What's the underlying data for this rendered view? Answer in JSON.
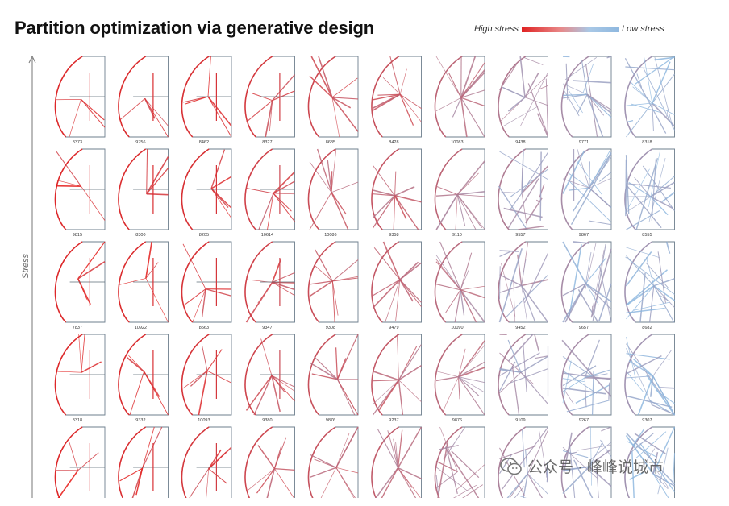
{
  "title": "Partition optimization via generative design",
  "legend": {
    "high_label": "High stress",
    "low_label": "Low stress",
    "high_color": "#e02222",
    "low_color": "#8fb8df"
  },
  "axis": {
    "label": "Stress"
  },
  "watermark": {
    "text": "公众号 · 峰峰说城市",
    "icon": "wechat-icon"
  },
  "grid": {
    "rows": 5,
    "cols": 10,
    "labels": [
      [
        "8373",
        "9756",
        "8462",
        "8327",
        "8685",
        "8428",
        "10083",
        "9438",
        "9771",
        "8318"
      ],
      [
        "9815",
        "8300",
        "8205",
        "10614",
        "10086",
        "9358",
        "9110",
        "9557",
        "9867",
        "8555"
      ],
      [
        "7837",
        "10922",
        "8563",
        "9347",
        "9308",
        "9479",
        "10090",
        "9452",
        "9657",
        "8682"
      ],
      [
        "8318",
        "9332",
        "10093",
        "9380",
        "9876",
        "9237",
        "9876",
        "9109",
        "9267",
        "9307"
      ],
      [
        "",
        "",
        "",
        "",
        "",
        "",
        "",
        "",
        "",
        ""
      ]
    ],
    "stress": [
      [
        0.05,
        0.08,
        0.12,
        0.18,
        0.3,
        0.38,
        0.55,
        0.72,
        0.88,
        0.96
      ],
      [
        0.05,
        0.08,
        0.12,
        0.25,
        0.35,
        0.42,
        0.55,
        0.75,
        0.88,
        0.95
      ],
      [
        0.05,
        0.08,
        0.14,
        0.25,
        0.35,
        0.45,
        0.6,
        0.75,
        0.88,
        0.95
      ],
      [
        0.05,
        0.1,
        0.15,
        0.28,
        0.38,
        0.45,
        0.58,
        0.78,
        0.88,
        0.95
      ],
      [
        0.05,
        0.1,
        0.18,
        0.3,
        0.4,
        0.48,
        0.62,
        0.8,
        0.9,
        0.95
      ]
    ]
  }
}
